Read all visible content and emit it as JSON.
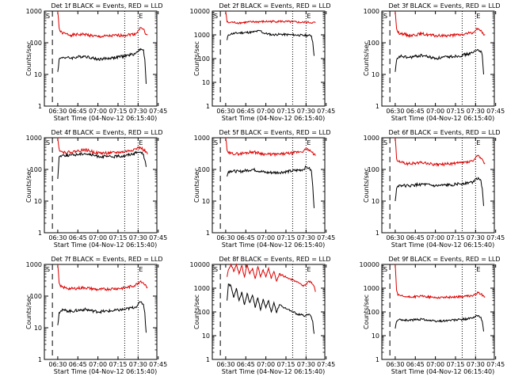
{
  "chart_data": [
    {
      "type": "line",
      "title": "Det 1f BLACK = Events, RED = LLD",
      "xlabel": "Start Time (04-Nov-12 06:15:40)",
      "ylabel": "Counts/sec",
      "x_ticks": [
        "06:30",
        "06:45",
        "07:00",
        "07:15",
        "07:30",
        "07:45"
      ],
      "y_ticks": [
        "1",
        "10",
        "100",
        "1000"
      ],
      "y_scale": "log",
      "ylim": [
        1,
        1000
      ],
      "markers": [
        "S",
        "E"
      ],
      "series": [
        {
          "name": "LLD",
          "color": "#dd0000",
          "x": [
            0,
            1,
            2,
            4,
            6,
            10,
            20,
            30,
            40,
            50,
            58,
            60,
            62,
            64,
            65,
            67
          ],
          "y": [
            1000,
            300,
            220,
            200,
            190,
            175,
            185,
            155,
            165,
            175,
            190,
            240,
            300,
            270,
            210,
            185
          ]
        },
        {
          "name": "Events",
          "color": "#000000",
          "x": [
            0,
            1,
            2,
            4,
            6,
            10,
            20,
            30,
            40,
            50,
            58,
            60,
            62,
            64,
            65,
            66
          ],
          "y": [
            12,
            30,
            32,
            35,
            34,
            33,
            38,
            30,
            33,
            38,
            45,
            55,
            65,
            60,
            30,
            5
          ]
        }
      ]
    },
    {
      "type": "line",
      "title": "Det 2f BLACK = Events, RED = LLD",
      "xlabel": "Start Time (04-Nov-12 06:15:40)",
      "ylabel": "Counts/sec",
      "x_ticks": [
        "06:30",
        "06:45",
        "07:00",
        "07:15",
        "07:30",
        "07:45"
      ],
      "y_ticks": [
        "1",
        "10",
        "100",
        "1000",
        "10000"
      ],
      "y_scale": "log",
      "ylim": [
        1,
        10000
      ],
      "markers": [
        "S",
        "E"
      ],
      "series": [
        {
          "name": "LLD",
          "color": "#dd0000",
          "x": [
            0,
            1,
            2,
            4,
            10,
            20,
            30,
            40,
            50,
            58,
            60,
            62,
            65,
            67
          ],
          "y": [
            10000,
            3500,
            3200,
            3400,
            3200,
            3500,
            3600,
            3700,
            3500,
            3300,
            3400,
            3300,
            3300,
            3200
          ]
        },
        {
          "name": "Events",
          "color": "#000000",
          "x": [
            1,
            2,
            4,
            10,
            20,
            26,
            28,
            35,
            40,
            50,
            58,
            62,
            64,
            65,
            66
          ],
          "y": [
            600,
            1000,
            1100,
            1200,
            1300,
            1500,
            1200,
            1000,
            1050,
            1000,
            950,
            950,
            900,
            500,
            130
          ]
        }
      ]
    },
    {
      "type": "line",
      "title": "Det 3f BLACK = Events, RED = LLD",
      "xlabel": "Start Time (04-Nov-12 06:15:40)",
      "ylabel": "Counts/sec",
      "x_ticks": [
        "06:30",
        "06:45",
        "07:00",
        "07:15",
        "07:30",
        "07:45"
      ],
      "y_ticks": [
        "1",
        "10",
        "100",
        "1000"
      ],
      "y_scale": "log",
      "ylim": [
        1,
        1000
      ],
      "markers": [
        "S",
        "E"
      ],
      "series": [
        {
          "name": "LLD",
          "color": "#dd0000",
          "x": [
            0,
            1,
            2,
            4,
            6,
            10,
            20,
            30,
            40,
            50,
            58,
            60,
            62,
            64,
            65,
            67
          ],
          "y": [
            1000,
            280,
            210,
            200,
            190,
            170,
            190,
            165,
            170,
            180,
            210,
            240,
            280,
            250,
            200,
            185
          ]
        },
        {
          "name": "Events",
          "color": "#000000",
          "x": [
            0,
            1,
            2,
            4,
            6,
            10,
            20,
            30,
            40,
            50,
            58,
            60,
            62,
            64,
            65,
            66
          ],
          "y": [
            12,
            28,
            32,
            38,
            36,
            34,
            40,
            32,
            36,
            40,
            48,
            56,
            60,
            55,
            40,
            10
          ]
        }
      ]
    },
    {
      "type": "line",
      "title": "Det 4f BLACK = Events, RED = LLD",
      "xlabel": "Start Time (04-Nov-12 06:15:40)",
      "ylabel": "Counts/sec",
      "x_ticks": [
        "06:30",
        "06:45",
        "07:00",
        "07:15",
        "07:30",
        "07:45"
      ],
      "y_ticks": [
        "1",
        "10",
        "100",
        "1000"
      ],
      "y_scale": "log",
      "ylim": [
        1,
        1000
      ],
      "markers": [
        "S",
        "E"
      ],
      "series": [
        {
          "name": "LLD",
          "color": "#dd0000",
          "x": [
            0,
            1,
            2,
            4,
            10,
            20,
            30,
            40,
            50,
            58,
            60,
            62,
            64,
            66,
            67
          ],
          "y": [
            1000,
            450,
            380,
            350,
            350,
            420,
            330,
            330,
            360,
            440,
            480,
            480,
            420,
            360,
            300
          ]
        },
        {
          "name": "Events",
          "color": "#000000",
          "x": [
            0,
            1,
            2,
            4,
            10,
            20,
            30,
            40,
            50,
            58,
            60,
            62,
            64,
            65,
            66
          ],
          "y": [
            50,
            250,
            270,
            280,
            280,
            320,
            260,
            250,
            270,
            330,
            350,
            350,
            300,
            200,
            120
          ]
        }
      ]
    },
    {
      "type": "line",
      "title": "Det 5f BLACK = Events, RED = LLD",
      "xlabel": "Start Time (04-Nov-12 06:15:40)",
      "ylabel": "Counts/sec",
      "x_ticks": [
        "06:30",
        "06:45",
        "07:00",
        "07:15",
        "07:30",
        "07:45"
      ],
      "y_ticks": [
        "1",
        "10",
        "100",
        "1000"
      ],
      "y_scale": "log",
      "ylim": [
        1,
        1000
      ],
      "markers": [
        "S",
        "E"
      ],
      "series": [
        {
          "name": "LLD",
          "color": "#dd0000",
          "x": [
            0,
            1,
            2,
            4,
            10,
            20,
            30,
            40,
            50,
            58,
            60,
            62,
            64,
            66,
            67
          ],
          "y": [
            1000,
            400,
            330,
            320,
            310,
            360,
            300,
            300,
            330,
            380,
            430,
            420,
            360,
            300,
            270
          ]
        },
        {
          "name": "Events",
          "color": "#000000",
          "x": [
            1,
            2,
            4,
            10,
            20,
            30,
            40,
            50,
            58,
            60,
            62,
            64,
            65,
            66
          ],
          "y": [
            60,
            85,
            90,
            85,
            100,
            80,
            80,
            90,
            100,
            120,
            110,
            90,
            30,
            6
          ]
        }
      ]
    },
    {
      "type": "line",
      "title": "Det 6f BLACK = Events, RED = LLD",
      "xlabel": "Start Time (04-Nov-12 06:15:40)",
      "ylabel": "Counts/sec",
      "x_ticks": [
        "06:30",
        "06:45",
        "07:00",
        "07:15",
        "07:30",
        "07:45"
      ],
      "y_ticks": [
        "1",
        "10",
        "100",
        "1000"
      ],
      "y_scale": "log",
      "ylim": [
        1,
        1000
      ],
      "markers": [
        "S",
        "E"
      ],
      "series": [
        {
          "name": "LLD",
          "color": "#dd0000",
          "x": [
            0,
            1,
            2,
            4,
            6,
            10,
            20,
            30,
            40,
            50,
            58,
            60,
            62,
            64,
            66,
            67
          ],
          "y": [
            1000,
            220,
            180,
            170,
            160,
            150,
            165,
            140,
            150,
            160,
            180,
            230,
            280,
            220,
            170,
            160
          ]
        },
        {
          "name": "Events",
          "color": "#000000",
          "x": [
            0,
            1,
            2,
            4,
            6,
            10,
            20,
            30,
            40,
            50,
            58,
            60,
            62,
            64,
            65,
            66
          ],
          "y": [
            10,
            25,
            30,
            32,
            31,
            30,
            34,
            30,
            32,
            36,
            40,
            50,
            55,
            45,
            25,
            7
          ]
        }
      ]
    },
    {
      "type": "line",
      "title": "Det 7f BLACK = Events, RED = LLD",
      "xlabel": "Start Time (04-Nov-12 06:15:40)",
      "ylabel": "Counts/sec",
      "x_ticks": [
        "06:30",
        "06:45",
        "07:00",
        "07:15",
        "07:30",
        "07:45"
      ],
      "y_ticks": [
        "1",
        "10",
        "100",
        "1000"
      ],
      "y_scale": "log",
      "ylim": [
        1,
        1000
      ],
      "markers": [
        "S",
        "E"
      ],
      "series": [
        {
          "name": "LLD",
          "color": "#dd0000",
          "x": [
            0,
            1,
            2,
            4,
            6,
            10,
            20,
            30,
            40,
            50,
            58,
            60,
            62,
            64,
            66,
            67
          ],
          "y": [
            1000,
            260,
            200,
            190,
            180,
            170,
            185,
            160,
            170,
            180,
            220,
            260,
            300,
            260,
            210,
            190
          ]
        },
        {
          "name": "Events",
          "color": "#000000",
          "x": [
            0,
            1,
            2,
            4,
            6,
            10,
            20,
            30,
            40,
            50,
            58,
            60,
            62,
            64,
            65,
            66
          ],
          "y": [
            12,
            30,
            33,
            36,
            35,
            33,
            38,
            32,
            34,
            38,
            45,
            55,
            65,
            55,
            30,
            7
          ]
        }
      ]
    },
    {
      "type": "line",
      "title": "Det 8f BLACK = Events, RED = LLD",
      "xlabel": "Start Time (04-Nov-12 06:15:40)",
      "ylabel": "Counts/sec",
      "x_ticks": [
        "06:30",
        "06:45",
        "07:00",
        "07:15",
        "07:30",
        "07:45"
      ],
      "y_ticks": [
        "1",
        "10",
        "100",
        "1000",
        "10000"
      ],
      "y_scale": "log",
      "ylim": [
        1,
        10000
      ],
      "markers": [
        "S",
        "E"
      ],
      "series": [
        {
          "name": "LLD",
          "color": "#dd0000",
          "x": [
            1,
            2,
            4,
            6,
            8,
            10,
            12,
            14,
            16,
            18,
            20,
            22,
            24,
            26,
            28,
            30,
            32,
            34,
            36,
            38,
            40,
            42,
            44,
            46,
            48,
            50,
            52,
            54,
            56,
            58,
            60,
            62,
            64,
            66,
            67
          ],
          "y": [
            3000,
            6000,
            10000,
            5000,
            10000,
            4000,
            9000,
            3000,
            10000,
            4000,
            7000,
            2500,
            8000,
            3000,
            6000,
            3000,
            7000,
            2500,
            5000,
            2000,
            4000,
            3500,
            3000,
            2800,
            2500,
            2200,
            2000,
            1800,
            1500,
            1200,
            1500,
            2000,
            1800,
            1200,
            700
          ]
        },
        {
          "name": "Events",
          "color": "#000000",
          "x": [
            1,
            2,
            4,
            6,
            8,
            10,
            12,
            14,
            16,
            18,
            20,
            22,
            24,
            26,
            28,
            30,
            32,
            34,
            36,
            38,
            40,
            42,
            44,
            46,
            48,
            50,
            52,
            54,
            56,
            58,
            60,
            62,
            64,
            65,
            66
          ],
          "y": [
            300,
            1500,
            1200,
            400,
            1000,
            300,
            700,
            200,
            600,
            250,
            500,
            150,
            400,
            120,
            350,
            150,
            300,
            100,
            250,
            90,
            200,
            170,
            150,
            130,
            110,
            100,
            90,
            80,
            75,
            70,
            70,
            80,
            60,
            40,
            12
          ]
        }
      ]
    },
    {
      "type": "line",
      "title": "Det 9f BLACK = Events, RED = LLD",
      "xlabel": "Start Time (04-Nov-12 06:15:40)",
      "ylabel": "Counts/sec",
      "x_ticks": [
        "06:30",
        "06:45",
        "07:00",
        "07:15",
        "07:30",
        "07:45"
      ],
      "y_ticks": [
        "1",
        "10",
        "100",
        "1000",
        "10000"
      ],
      "y_scale": "log",
      "ylim": [
        1,
        10000
      ],
      "markers": [
        "S",
        "E"
      ],
      "series": [
        {
          "name": "LLD",
          "color": "#dd0000",
          "x": [
            0,
            1,
            2,
            4,
            6,
            10,
            20,
            30,
            40,
            50,
            58,
            60,
            62,
            64,
            66,
            67
          ],
          "y": [
            10000,
            800,
            500,
            480,
            450,
            420,
            460,
            400,
            420,
            440,
            480,
            560,
            650,
            560,
            480,
            440
          ]
        },
        {
          "name": "Events",
          "color": "#000000",
          "x": [
            0,
            1,
            2,
            4,
            6,
            10,
            20,
            30,
            40,
            50,
            58,
            60,
            62,
            64,
            65,
            66
          ],
          "y": [
            20,
            40,
            45,
            48,
            46,
            44,
            50,
            40,
            44,
            48,
            55,
            65,
            70,
            60,
            40,
            15
          ]
        }
      ]
    }
  ]
}
